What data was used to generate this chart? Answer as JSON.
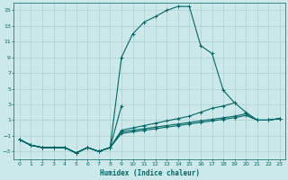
{
  "bg_color": "#cce8e8",
  "grid_color": "#aacfcf",
  "line_color": "#006666",
  "xlabel": "Humidex (Indice chaleur)",
  "xlim": [
    -0.5,
    23.5
  ],
  "ylim": [
    -4,
    16
  ],
  "yticks": [
    -3,
    -1,
    1,
    3,
    5,
    7,
    9,
    11,
    13,
    15
  ],
  "xticks": [
    0,
    1,
    2,
    3,
    4,
    5,
    6,
    7,
    8,
    9,
    10,
    11,
    12,
    13,
    14,
    15,
    16,
    17,
    18,
    19,
    20,
    21,
    22,
    23
  ],
  "main_line": {
    "x": [
      0,
      1,
      2,
      3,
      4,
      5,
      6,
      7,
      8,
      9,
      10,
      11,
      12,
      13,
      14,
      15,
      16,
      17,
      18,
      19
    ],
    "y": [
      -1.5,
      -2.2,
      -2.5,
      -2.5,
      -2.5,
      -3.2,
      -2.5,
      -3.0,
      -2.5,
      9.0,
      12.0,
      13.5,
      14.2,
      15.0,
      15.5,
      15.5,
      10.5,
      9.5,
      4.8,
      3.2
    ]
  },
  "line_a": {
    "x": [
      0,
      1,
      2,
      3,
      4,
      5,
      6,
      7,
      8,
      9
    ],
    "y": [
      -1.5,
      -2.2,
      -2.5,
      -2.5,
      -2.5,
      -3.2,
      -2.5,
      -3.0,
      -2.5,
      2.8
    ]
  },
  "line_b": {
    "x": [
      0,
      1,
      2,
      3,
      4,
      5,
      6,
      7,
      8,
      9,
      10,
      11,
      12,
      13,
      14,
      15,
      16,
      17,
      18,
      19,
      20,
      21,
      22,
      23
    ],
    "y": [
      -1.5,
      -2.2,
      -2.5,
      -2.5,
      -2.5,
      -3.2,
      -2.5,
      -3.0,
      -2.5,
      -0.5,
      -0.3,
      -0.1,
      0.1,
      0.3,
      0.5,
      0.7,
      0.9,
      1.1,
      1.3,
      1.5,
      1.8,
      1.0,
      1.0,
      1.2
    ]
  },
  "line_c": {
    "x": [
      0,
      1,
      2,
      3,
      4,
      5,
      6,
      7,
      8,
      9,
      10,
      11,
      12,
      13,
      14,
      15,
      16,
      17,
      18,
      19,
      20,
      21,
      22,
      23
    ],
    "y": [
      -1.5,
      -2.2,
      -2.5,
      -2.5,
      -2.5,
      -3.2,
      -2.5,
      -3.0,
      -2.5,
      -0.7,
      -0.5,
      -0.3,
      -0.1,
      0.1,
      0.3,
      0.5,
      0.7,
      0.9,
      1.1,
      1.3,
      1.6,
      1.0,
      1.0,
      1.2
    ]
  },
  "line_d": {
    "x": [
      0,
      1,
      2,
      3,
      4,
      5,
      6,
      7,
      8,
      9,
      10,
      11,
      12,
      13,
      14,
      15,
      16,
      17,
      18,
      19,
      20,
      21,
      22,
      23
    ],
    "y": [
      -1.5,
      -2.2,
      -2.5,
      -2.5,
      -2.5,
      -3.2,
      -2.5,
      -3.0,
      -2.5,
      -0.3,
      -0.0,
      0.3,
      0.6,
      0.9,
      1.2,
      1.5,
      2.0,
      2.5,
      2.8,
      3.2,
      2.0,
      1.0,
      1.0,
      1.2
    ]
  }
}
